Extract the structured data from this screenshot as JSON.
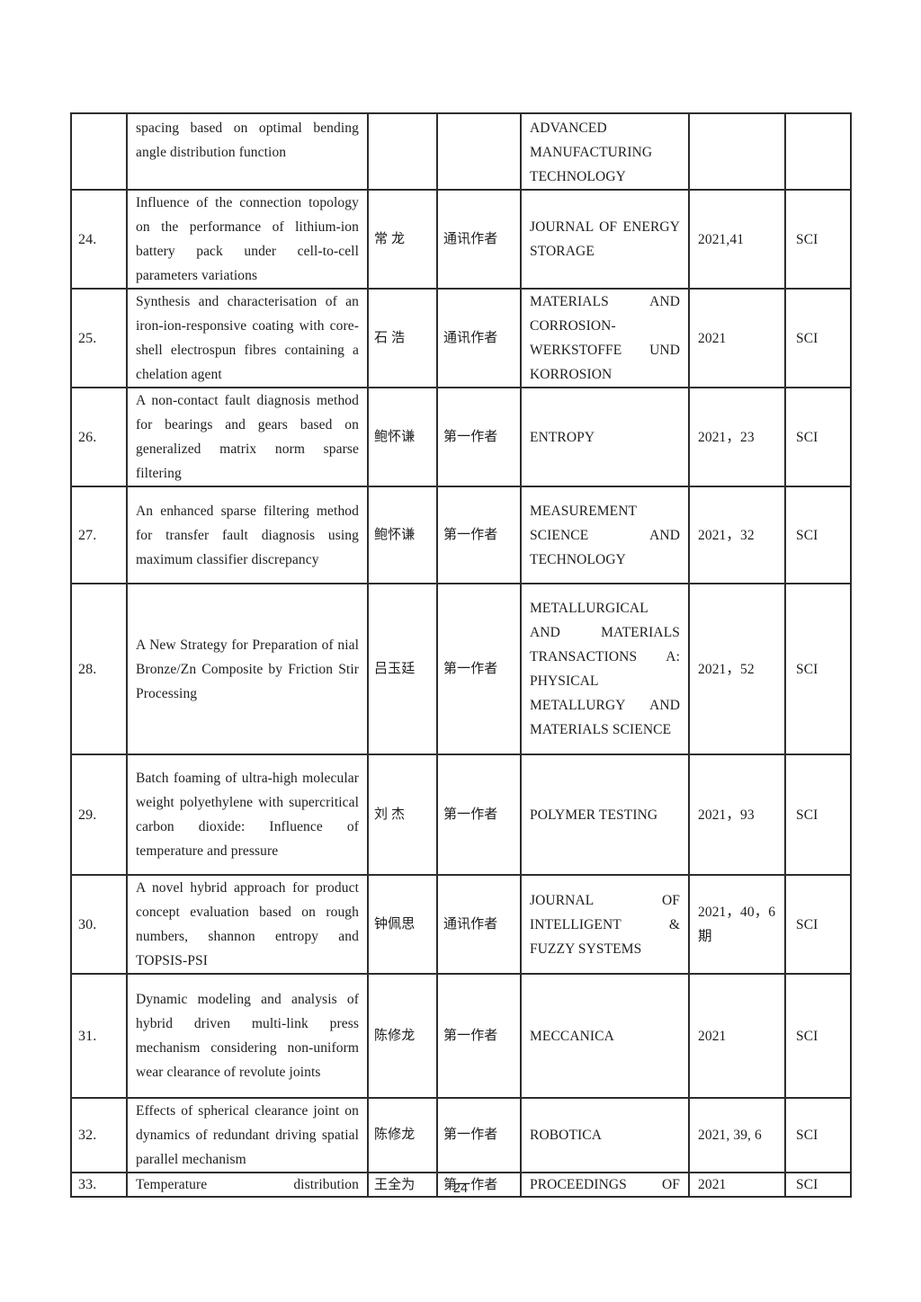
{
  "page": {
    "number": "24"
  },
  "table": {
    "rows": [
      {
        "no": "",
        "title": "spacing based on optimal bending angle distribution function",
        "author": "",
        "role": "",
        "journal": "ADVANCED MANUFACTURING TECHNOLOGY",
        "year": "",
        "index": ""
      },
      {
        "no": "24.",
        "title": "Influence of the connection topology on the performance of lithium-ion battery pack under cell-to-cell parameters variations",
        "author": "常 龙",
        "role": "通讯作者",
        "journal": "JOURNAL OF ENERGY STORAGE",
        "year": "2021,41",
        "index": "SCI"
      },
      {
        "no": "25.",
        "title": "Synthesis and characterisation of an iron-ion-responsive coating with core-shell electrospun fibres containing a chelation agent",
        "author": "石 浩",
        "role": "通讯作者",
        "journal": "MATERIALS AND CORROSION- WERKSTOFFE UND KORROSION",
        "year": "2021",
        "index": "SCI"
      },
      {
        "no": "26.",
        "title": "A non-contact fault diagnosis method for bearings and gears based on generalized matrix norm sparse filtering",
        "author": "鲍怀谦",
        "role": "第一作者",
        "journal": "ENTROPY",
        "year": "2021，23",
        "index": "SCI"
      },
      {
        "no": "27.",
        "title": "An enhanced sparse filtering method for transfer fault diagnosis using maximum classifier discrepancy",
        "author": "鲍怀谦",
        "role": "第一作者",
        "journal": "MEASUREMENT SCIENCE AND TECHNOLOGY",
        "year": "2021，32",
        "index": "SCI"
      },
      {
        "no": "28.",
        "title": "A New Strategy for Preparation of nial Bronze/Zn Composite by Friction Stir Processing",
        "author": "吕玉廷",
        "role": "第一作者",
        "journal": "METALLURGICAL AND MATERIALS TRANSACTIONS A: PHYSICAL METALLURGY AND MATERIALS SCIENCE",
        "year": "2021，52",
        "index": "SCI"
      },
      {
        "no": "29.",
        "title": "Batch foaming of ultra-high molecular weight polyethylene with supercritical carbon dioxide: Influence of temperature and pressure",
        "author": "刘 杰",
        "role": "第一作者",
        "journal": "POLYMER TESTING",
        "year": "2021，93",
        "index": "SCI"
      },
      {
        "no": "30.",
        "title": "A novel hybrid approach for product concept evaluation based on rough numbers, shannon entropy and TOPSIS-PSI",
        "author": "钟佩思",
        "role": "通讯作者",
        "journal": "JOURNAL OF INTELLIGENT & FUZZY SYSTEMS",
        "year": "2021，40，6 期",
        "index": "SCI"
      },
      {
        "no": "31.",
        "title": "Dynamic modeling and analysis of hybrid driven multi-link press mechanism considering non-uniform wear clearance of revolute joints",
        "author": "陈修龙",
        "role": "第一作者",
        "journal": "MECCANICA",
        "year": "2021",
        "index": "SCI"
      },
      {
        "no": "32.",
        "title": "Effects of spherical clearance joint on dynamics of redundant driving spatial parallel mechanism",
        "author": "陈修龙",
        "role": "第一作者",
        "journal": "ROBOTICA",
        "year": "2021, 39, 6",
        "index": "SCI"
      },
      {
        "no": "33.",
        "title": "Temperature distribution",
        "author": "王全为",
        "role": "第一作者",
        "journal": "PROCEEDINGS OF",
        "year": "2021",
        "index": "SCI"
      }
    ]
  }
}
